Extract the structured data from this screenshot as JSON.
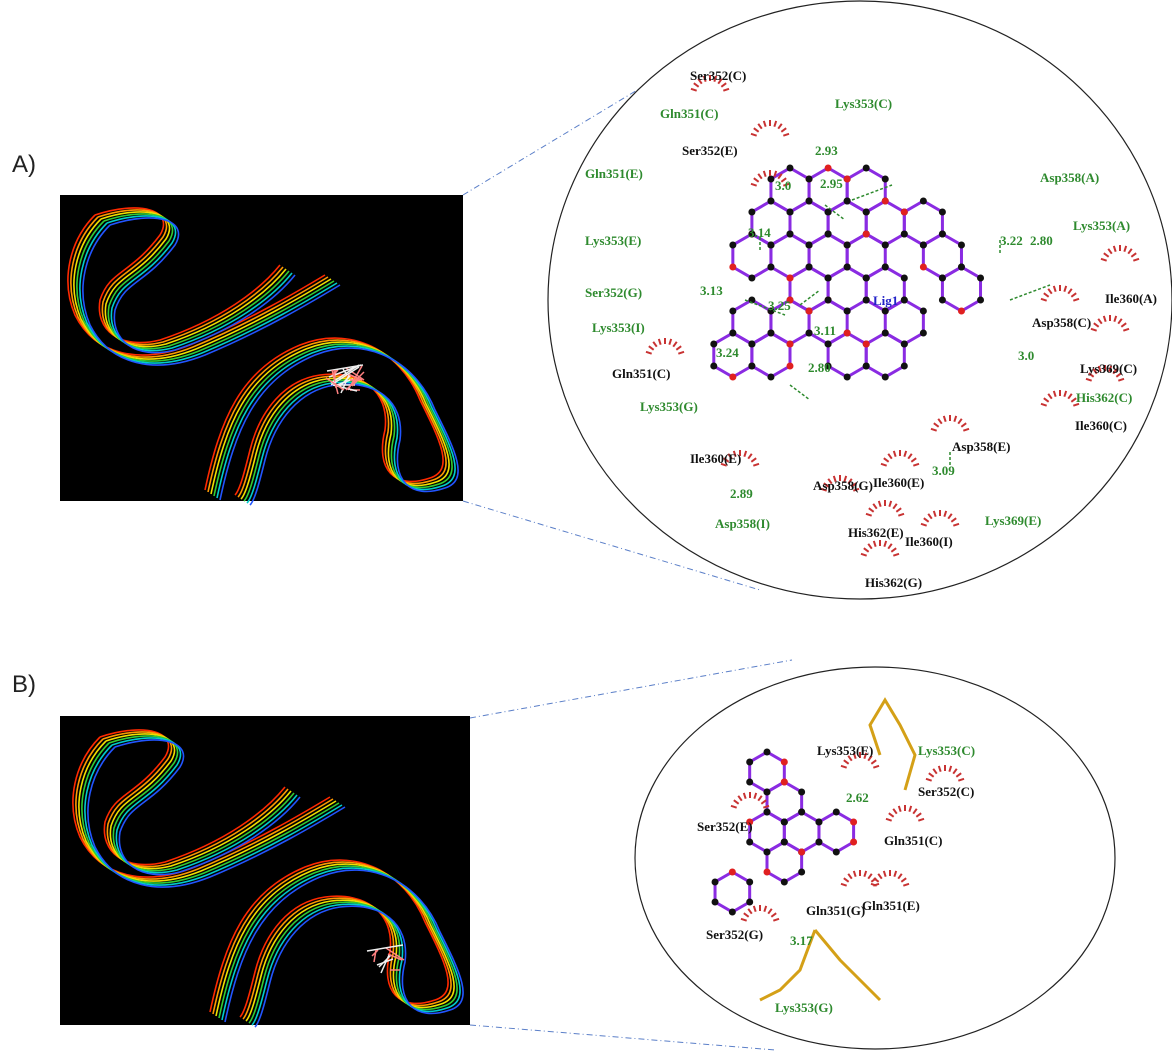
{
  "figure": {
    "panels": [
      {
        "label": "A)",
        "ligand": {
          "text": "Lig1",
          "color": "#2323c8"
        },
        "residues": [
          {
            "text": "Ser352(C)",
            "color": "#111111"
          },
          {
            "text": "Lys353(C)",
            "color": "#2e8a2e"
          },
          {
            "text": "Gln351(C)",
            "color": "#2e8a2e"
          },
          {
            "text": "Ser352(E)",
            "color": "#111111"
          },
          {
            "text": "Gln351(E)",
            "color": "#2e8a2e"
          },
          {
            "text": "Asp358(A)",
            "color": "#2e8a2e"
          },
          {
            "text": "Lys353(E)",
            "color": "#2e8a2e"
          },
          {
            "text": "Lys353(A)",
            "color": "#2e8a2e"
          },
          {
            "text": "Ser352(G)",
            "color": "#2e8a2e"
          },
          {
            "text": "Ile360(A)",
            "color": "#111111"
          },
          {
            "text": "Asp358(C)",
            "color": "#111111"
          },
          {
            "text": "Lys353(I)",
            "color": "#2e8a2e"
          },
          {
            "text": "Lys369(C)",
            "color": "#111111"
          },
          {
            "text": "His362(C)",
            "color": "#2e8a2e"
          },
          {
            "text": "Gln351(C)",
            "color": "#111111"
          },
          {
            "text": "Lys353(G)",
            "color": "#2e8a2e"
          },
          {
            "text": "Ile360(C)",
            "color": "#111111"
          },
          {
            "text": "Ile360(E)",
            "color": "#111111"
          },
          {
            "text": "Asp358(E)",
            "color": "#111111"
          },
          {
            "text": "Asp358(G)",
            "color": "#111111"
          },
          {
            "text": "Ile360(E)",
            "color": "#111111"
          },
          {
            "text": "Asp358(I)",
            "color": "#2e8a2e"
          },
          {
            "text": "Lys369(E)",
            "color": "#2e8a2e"
          },
          {
            "text": "His362(E)",
            "color": "#111111"
          },
          {
            "text": "Ile360(I)",
            "color": "#111111"
          },
          {
            "text": "His362(G)",
            "color": "#111111"
          }
        ],
        "distances": [
          "2.93",
          "3.0",
          "2.95",
          "3.14",
          "3.22",
          "2.80",
          "3.13",
          "3.25",
          "3.11",
          "3.24",
          "2.80",
          "3.0",
          "2.89",
          "3.09"
        ],
        "distance_color": "#2e8a2e"
      },
      {
        "label": "B)",
        "residues": [
          {
            "text": "Lys353(E)",
            "color": "#111111"
          },
          {
            "text": "Lys353(C)",
            "color": "#2e8a2e"
          },
          {
            "text": "Ser352(C)",
            "color": "#111111"
          },
          {
            "text": "Ser352(E)",
            "color": "#111111"
          },
          {
            "text": "Gln351(C)",
            "color": "#111111"
          },
          {
            "text": "Gln351(G)",
            "color": "#111111"
          },
          {
            "text": "Gln351(E)",
            "color": "#111111"
          },
          {
            "text": "Ser352(G)",
            "color": "#111111"
          },
          {
            "text": "Lys353(G)",
            "color": "#2e8a2e"
          }
        ],
        "distances": [
          "2.62",
          "3.17"
        ],
        "distance_color": "#2e8a2e"
      }
    ]
  }
}
